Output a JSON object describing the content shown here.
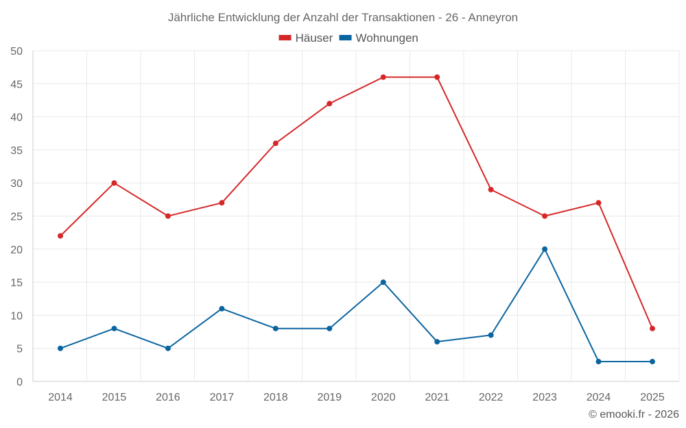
{
  "chart_data": {
    "type": "line",
    "title": "Jährliche Entwicklung der Anzahl der Transaktionen - 26 - Anneyron",
    "categories": [
      "2014",
      "2015",
      "2016",
      "2017",
      "2018",
      "2019",
      "2020",
      "2021",
      "2022",
      "2023",
      "2024",
      "2025"
    ],
    "series": [
      {
        "name": "Häuser",
        "color": "#d62728",
        "values": [
          22,
          30,
          25,
          27,
          36,
          42,
          46,
          46,
          29,
          25,
          27,
          8
        ]
      },
      {
        "name": "Wohnungen",
        "color": "#0a64a0",
        "values": [
          5,
          8,
          5,
          11,
          8,
          8,
          15,
          6,
          7,
          20,
          3,
          3
        ]
      }
    ],
    "ylim": [
      0,
      50
    ],
    "yticks": [
      0,
      5,
      10,
      15,
      20,
      25,
      30,
      35,
      40,
      45,
      50
    ],
    "xlabel": "",
    "ylabel": "",
    "grid": true,
    "legend": "top-center"
  },
  "credit": "© emooki.fr - 2026"
}
